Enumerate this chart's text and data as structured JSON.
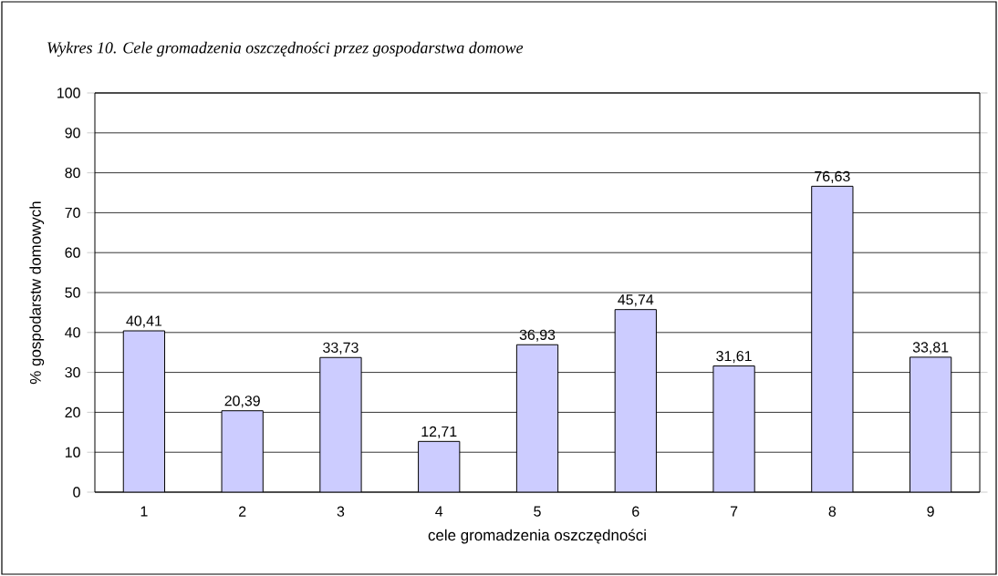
{
  "chart_data": {
    "type": "bar",
    "title": "Wykres 10. Cele gromadzenia oszczędności przez gospodarstwa domowe",
    "xlabel": "cele gromadzenia oszczędności",
    "ylabel": "% gospodarstw domowych",
    "categories": [
      "1",
      "2",
      "3",
      "4",
      "5",
      "6",
      "7",
      "8",
      "9"
    ],
    "values": [
      40.41,
      20.39,
      33.73,
      12.71,
      36.93,
      45.74,
      31.61,
      76.63,
      33.81
    ],
    "value_labels": [
      "40,41",
      "20,39",
      "33,73",
      "12,71",
      "36,93",
      "45,74",
      "31,61",
      "76,63",
      "33,81"
    ],
    "color": "#ccccff",
    "ylim": [
      0,
      100
    ],
    "yticks": [
      0,
      10,
      20,
      30,
      40,
      50,
      60,
      70,
      80,
      90,
      100
    ],
    "grid": "y"
  }
}
